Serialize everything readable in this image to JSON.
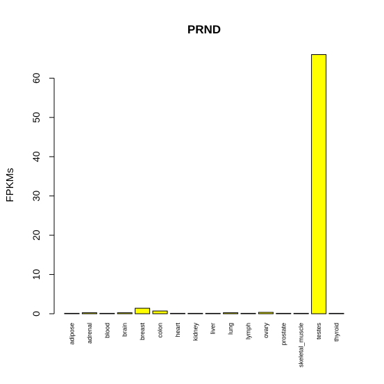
{
  "chart_data": {
    "type": "bar",
    "title": "PRND",
    "xlabel": "",
    "ylabel": "FPKMs",
    "ylim": [
      0,
      66
    ],
    "yticks": [
      0,
      10,
      20,
      30,
      40,
      50,
      60
    ],
    "bar_color": "#ffff00",
    "bar_border_color": "#000000",
    "categories": [
      "adipose",
      "adrenal",
      "blood",
      "brain",
      "breast",
      "colon",
      "heart",
      "kidney",
      "liver",
      "lung",
      "lymph",
      "ovary",
      "prostate",
      "skeletal_muscle",
      "testes",
      "thyroid"
    ],
    "values": [
      0.05,
      0.25,
      0.02,
      0.25,
      1.4,
      0.7,
      0.03,
      0.03,
      0.03,
      0.25,
      0.05,
      0.35,
      0.03,
      0.03,
      66.0,
      0.03
    ]
  }
}
